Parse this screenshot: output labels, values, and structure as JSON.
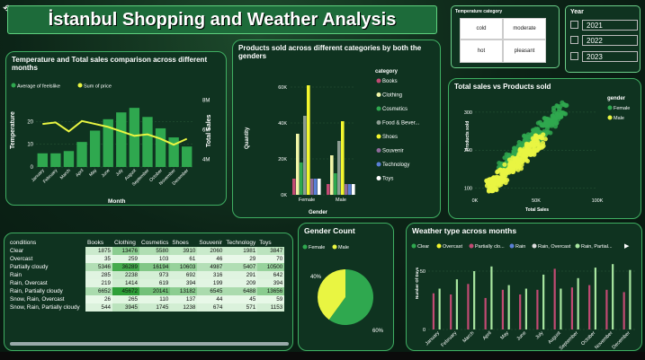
{
  "title": "İstanbul Shopping and Weather Analysis",
  "temp_slicer": {
    "title": "Temperature category",
    "options": [
      "cold",
      "moderate",
      "hot",
      "pleasant"
    ]
  },
  "year_slicer": {
    "title": "Year",
    "options": [
      "2021",
      "2022",
      "2023"
    ]
  },
  "colors": {
    "green": "#2fa84f",
    "yellow": "#e9f542",
    "panel": "#0f3320",
    "border": "#3fae62"
  },
  "chart_data": [
    {
      "type": "bar+line",
      "title": "Temperature and Total sales comparison across different months",
      "xlabel": "Month",
      "ylabel": "Temperature",
      "y2label": "Total Sales",
      "categories": [
        "January",
        "February",
        "March",
        "April",
        "May",
        "June",
        "July",
        "August",
        "September",
        "October",
        "November",
        "December"
      ],
      "series": [
        {
          "name": "Average of feelslike",
          "type": "bar",
          "axis": "left",
          "values": [
            6,
            6,
            7,
            11,
            16,
            21,
            24,
            26,
            22,
            17,
            13,
            9
          ]
        },
        {
          "name": "Sum of price",
          "type": "line",
          "axis": "right",
          "values": [
            6.4,
            6.5,
            5.9,
            6.6,
            6.4,
            6.2,
            5.9,
            5.6,
            5.7,
            5.4,
            5.0,
            5.4
          ]
        }
      ],
      "ylim": [
        0,
        30
      ],
      "y_ticks": [
        0,
        10,
        20
      ],
      "y2lim": [
        3.5,
        8.1
      ],
      "y2_ticks": [
        "4M",
        "6M",
        "8M"
      ]
    },
    {
      "type": "bar",
      "title": "Products sold across different categories by both the genders",
      "xlabel": "Gender",
      "ylabel": "Quantity",
      "legend_title": "category",
      "categories": [
        "Female",
        "Male"
      ],
      "series": [
        {
          "name": "Books",
          "color": "#c24a73",
          "values": [
            9000,
            6000
          ]
        },
        {
          "name": "Clothing",
          "color": "#f1f5a8",
          "values": [
            34000,
            22000
          ]
        },
        {
          "name": "Cosmetics",
          "color": "#2fa84f",
          "values": [
            18000,
            12000
          ]
        },
        {
          "name": "Food & Bever...",
          "color": "#8c9c92",
          "values": [
            44000,
            30000
          ]
        },
        {
          "name": "Shoes",
          "color": "#f3f62e",
          "values": [
            61000,
            41000
          ]
        },
        {
          "name": "Souvenir",
          "color": "#8f6a9a",
          "values": [
            9000,
            6000
          ]
        },
        {
          "name": "Technology",
          "color": "#5a7fd6",
          "values": [
            9000,
            6000
          ]
        },
        {
          "name": "Toys",
          "color": "#ffffff",
          "values": [
            9000,
            6000
          ]
        }
      ],
      "ylim": [
        0,
        66000
      ],
      "y_ticks": [
        "0K",
        "20K",
        "40K",
        "60K"
      ]
    },
    {
      "type": "scatter",
      "title": "Total sales vs Products sold",
      "xlabel": "Total Sales",
      "ylabel": "Products sold",
      "legend_title": "gender",
      "series": [
        {
          "name": "Female"
        },
        {
          "name": "Male"
        }
      ],
      "xlim": [
        0,
        100000
      ],
      "ylim": [
        80,
        340
      ],
      "x_ticks": [
        "0K",
        "50K",
        "100K"
      ],
      "y_ticks": [
        "100",
        "200",
        "300"
      ]
    },
    {
      "type": "pie",
      "title": "Gender Count",
      "categories": [
        "Female",
        "Male"
      ],
      "values": [
        60,
        40
      ],
      "labels": [
        "60%",
        "40%"
      ]
    },
    {
      "type": "bar",
      "title": "Weather type across months",
      "ylabel": "Number Of Days",
      "legend": [
        "Clear",
        "Overcast",
        "Partially clo...",
        "Rain",
        "Rain, Overcast",
        "Rain, Partial..."
      ],
      "legend_colors": [
        "#2fa84f",
        "#f3f62e",
        "#c24a73",
        "#5a7fd6",
        "#dddddd",
        "#a8e6a0"
      ],
      "categories": [
        "January",
        "February",
        "March",
        "April",
        "May",
        "June",
        "July",
        "August",
        "September",
        "October",
        "November",
        "December"
      ],
      "series": [
        {
          "name": "Clear",
          "values": [
            0,
            0,
            0,
            0,
            0,
            0,
            0,
            0,
            0,
            0,
            0,
            0
          ]
        },
        {
          "name": "Overcast",
          "values": [
            0,
            0,
            0,
            0,
            0,
            0,
            0,
            0,
            0,
            0,
            0,
            0
          ]
        },
        {
          "name": "Partially clo...",
          "values": [
            31,
            30,
            39,
            27,
            34,
            30,
            34,
            52,
            36,
            38,
            34,
            32
          ]
        },
        {
          "name": "Rain",
          "values": [
            0,
            0,
            0,
            0,
            0,
            0,
            0,
            0,
            0,
            0,
            0,
            0
          ]
        },
        {
          "name": "Rain, Overcast",
          "values": [
            0,
            0,
            0,
            0,
            0,
            0,
            0,
            0,
            0,
            0,
            0,
            0
          ]
        },
        {
          "name": "Rain, Partial...",
          "values": [
            35,
            43,
            50,
            54,
            38,
            35,
            47,
            35,
            44,
            53,
            56,
            51
          ]
        }
      ],
      "ylim": [
        0,
        60
      ],
      "y_ticks": [
        "0",
        "50"
      ]
    }
  ],
  "table": {
    "headers": [
      "conditions",
      "Books",
      "Clothing",
      "Cosmetics",
      "Shoes",
      "Souvenir",
      "Technology",
      "Toys"
    ],
    "rows": [
      [
        "Clear",
        "1875",
        "13476",
        "5580",
        "3910",
        "2060",
        "1981",
        "3847"
      ],
      [
        "Overcast",
        "35",
        "259",
        "103",
        "61",
        "46",
        "29",
        "70"
      ],
      [
        "Partially cloudy",
        "5346",
        "36289",
        "16194",
        "10603",
        "4987",
        "5407",
        "10500"
      ],
      [
        "Rain",
        "285",
        "2238",
        "973",
        "692",
        "316",
        "291",
        "642"
      ],
      [
        "Rain, Overcast",
        "219",
        "1414",
        "619",
        "394",
        "199",
        "209",
        "394"
      ],
      [
        "Rain, Partially cloudy",
        "6652",
        "45672",
        "20141",
        "13182",
        "6545",
        "6488",
        "13656"
      ],
      [
        "Snow, Rain, Overcast",
        "26",
        "265",
        "110",
        "137",
        "44",
        "45",
        "59"
      ],
      [
        "Snow, Rain, Partially cloudy",
        "544",
        "3945",
        "1745",
        "1238",
        "674",
        "571",
        "1153"
      ]
    ]
  }
}
